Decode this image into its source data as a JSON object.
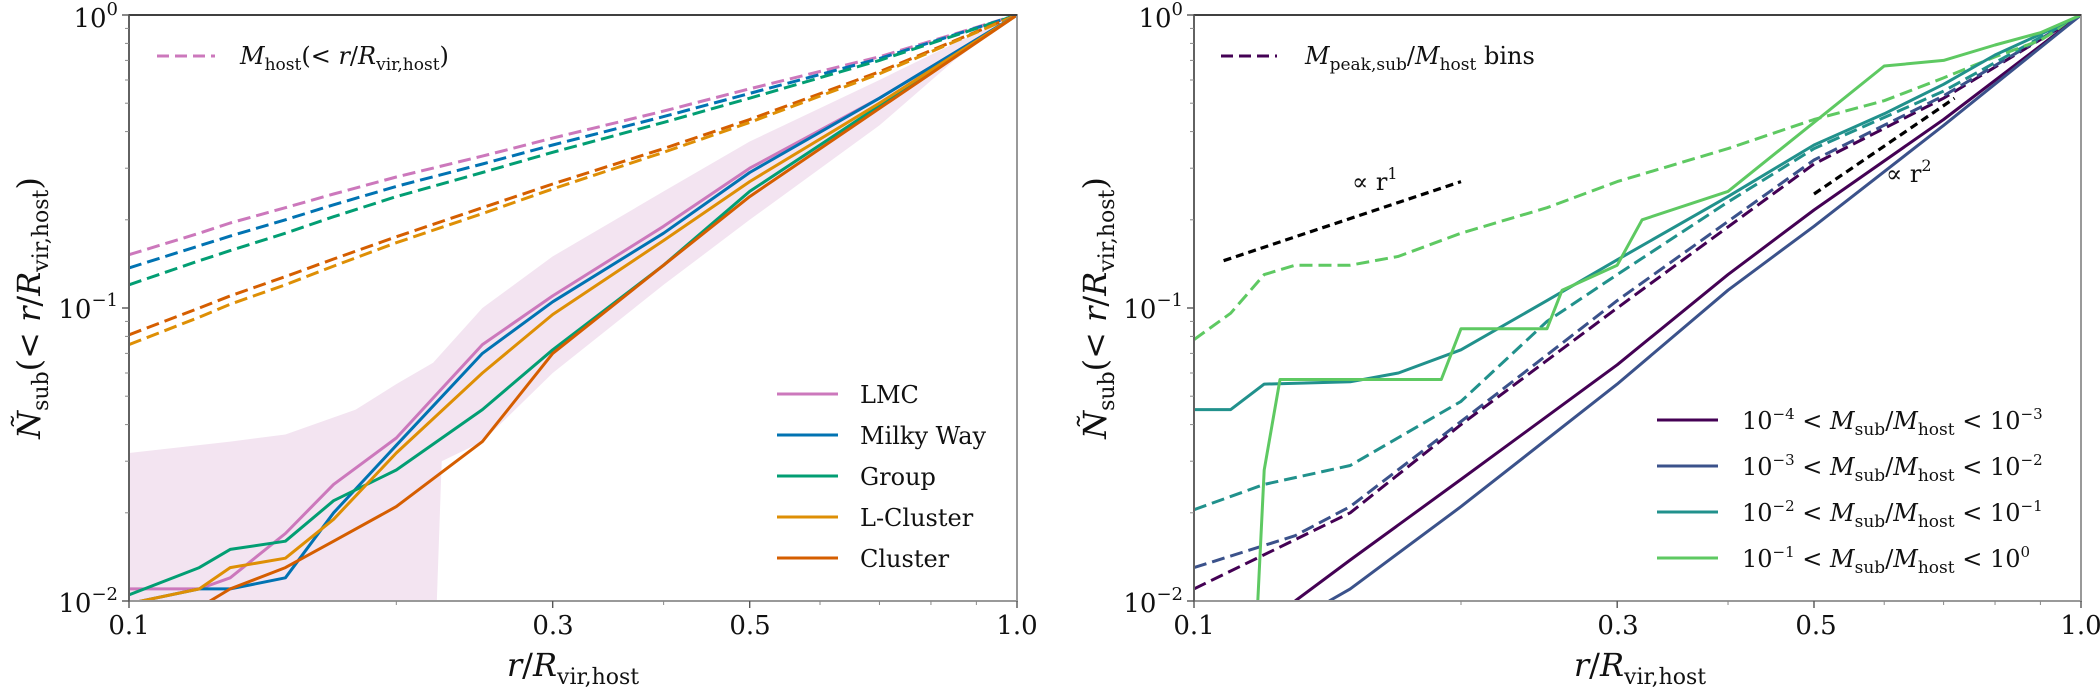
{
  "chart_data": [
    {
      "type": "line",
      "panel": "left",
      "xlabel": "r/R_vir,host",
      "ylabel": "Ñ_sub(< r/R_vir,host)",
      "xscale": "log",
      "yscale": "log",
      "xlim": [
        0.1,
        1.0
      ],
      "ylim": [
        0.01,
        1.0
      ],
      "xticks": [
        0.1,
        0.3,
        0.5,
        1.0
      ],
      "xtick_labels": [
        "0.1",
        "0.3",
        "0.5",
        "1.0"
      ],
      "yticks": [
        0.01,
        0.1,
        1.0
      ],
      "ytick_labels": [
        {
          "base": "10",
          "exp": "−2"
        },
        {
          "base": "10",
          "exp": "−1"
        },
        {
          "base": "10",
          "exp": "0"
        }
      ],
      "grid": false,
      "legend_top": {
        "placement": "top-left",
        "label": "M_host(< r/R_vir,host)",
        "style": "dashed",
        "color": "#cc78bc"
      },
      "legend": {
        "placement": "lower-right",
        "entries": [
          "LMC",
          "Milky Way",
          "Group",
          "L-Cluster",
          "Cluster"
        ]
      },
      "band": {
        "name": "LMC scatter",
        "color": "#f3e4f1",
        "x": [
          0.1,
          0.13,
          0.15,
          0.18,
          0.2,
          0.22,
          0.25,
          0.3,
          0.4,
          0.5,
          0.7,
          0.85,
          1.0
        ],
        "upper": [
          0.032,
          0.035,
          0.037,
          0.045,
          0.055,
          0.065,
          0.1,
          0.15,
          0.25,
          0.37,
          0.6,
          0.8,
          1.0
        ],
        "lower_x": [
          0.1,
          0.222,
          0.225,
          0.25,
          0.3,
          0.4,
          0.5,
          0.7,
          0.85,
          1.0
        ],
        "lower": [
          0.0095,
          0.0095,
          0.03,
          0.035,
          0.06,
          0.12,
          0.2,
          0.42,
          0.7,
          1.0
        ]
      },
      "x": [
        0.1,
        0.12,
        0.13,
        0.15,
        0.17,
        0.2,
        0.25,
        0.3,
        0.4,
        0.5,
        0.7,
        1.0
      ],
      "series": [
        {
          "name": "LMC",
          "color": "#cc78bc",
          "style": "solid",
          "values": [
            0.011,
            0.011,
            0.012,
            0.017,
            0.025,
            0.036,
            0.075,
            0.11,
            0.19,
            0.3,
            0.52,
            1.0
          ]
        },
        {
          "name": "Milky Way",
          "color": "#0173b2",
          "style": "solid",
          "values": [
            0.0098,
            0.011,
            0.011,
            0.012,
            0.02,
            0.034,
            0.07,
            0.105,
            0.18,
            0.29,
            0.52,
            1.0
          ]
        },
        {
          "name": "Group",
          "color": "#029e73",
          "style": "solid",
          "values": [
            0.0105,
            0.013,
            0.015,
            0.016,
            0.022,
            0.028,
            0.045,
            0.072,
            0.14,
            0.25,
            0.49,
            1.0
          ]
        },
        {
          "name": "L-Cluster",
          "color": "#de8f05",
          "style": "solid",
          "values": [
            0.0098,
            0.011,
            0.013,
            0.014,
            0.019,
            0.032,
            0.06,
            0.095,
            0.17,
            0.27,
            0.5,
            1.0
          ]
        },
        {
          "name": "Cluster",
          "color": "#d55e00",
          "style": "solid",
          "values": [
            0.0085,
            0.0095,
            0.011,
            0.013,
            0.016,
            0.021,
            0.035,
            0.07,
            0.14,
            0.24,
            0.48,
            1.0
          ]
        },
        {
          "name": "LMC host mass",
          "color": "#cc78bc",
          "style": "dashed",
          "values": [
            0.152,
            0.18,
            0.195,
            0.22,
            0.245,
            0.28,
            0.33,
            0.38,
            0.47,
            0.56,
            0.72,
            1.0
          ]
        },
        {
          "name": "Milky Way host mass",
          "color": "#0173b2",
          "style": "dashed",
          "values": [
            0.137,
            0.163,
            0.176,
            0.2,
            0.225,
            0.26,
            0.31,
            0.36,
            0.45,
            0.54,
            0.71,
            1.0
          ]
        },
        {
          "name": "Group host mass",
          "color": "#029e73",
          "style": "dashed",
          "values": [
            0.12,
            0.145,
            0.157,
            0.18,
            0.205,
            0.24,
            0.29,
            0.34,
            0.43,
            0.52,
            0.7,
            1.0
          ]
        },
        {
          "name": "Cluster host mass",
          "color": "#d55e00",
          "style": "dashed",
          "values": [
            0.081,
            0.1,
            0.11,
            0.128,
            0.147,
            0.175,
            0.22,
            0.265,
            0.35,
            0.44,
            0.64,
            1.0
          ]
        },
        {
          "name": "L-Cluster host mass",
          "color": "#de8f05",
          "style": "dashed",
          "values": [
            0.075,
            0.093,
            0.103,
            0.12,
            0.139,
            0.167,
            0.21,
            0.255,
            0.34,
            0.43,
            0.63,
            1.0
          ]
        }
      ]
    },
    {
      "type": "line",
      "panel": "right",
      "xlabel": "r/R_vir,host",
      "ylabel": "Ñ_sub(< r/R_vir,host)",
      "xscale": "log",
      "yscale": "log",
      "xlim": [
        0.1,
        1.0
      ],
      "ylim": [
        0.01,
        1.0
      ],
      "xticks": [
        0.1,
        0.3,
        0.5,
        1.0
      ],
      "xtick_labels": [
        "0.1",
        "0.3",
        "0.5",
        "1.0"
      ],
      "yticks": [
        0.01,
        0.1,
        1.0
      ],
      "ytick_labels": [
        {
          "base": "10",
          "exp": "−2"
        },
        {
          "base": "10",
          "exp": "−1"
        },
        {
          "base": "10",
          "exp": "0"
        }
      ],
      "grid": false,
      "legend_top": {
        "placement": "top-left",
        "label": "M_peak,sub/M_host bins",
        "style": "dashed",
        "color": "#440154"
      },
      "legend": {
        "placement": "lower-right",
        "entries": [
          {
            "lo": "−4",
            "hi": "−3",
            "label": "10^-4 < M_sub/M_host < 10^-3"
          },
          {
            "lo": "−3",
            "hi": "−2",
            "label": "10^-3 < M_sub/M_host < 10^-2"
          },
          {
            "lo": "−2",
            "hi": "−1",
            "label": "10^-2 < M_sub/M_host < 10^-1"
          },
          {
            "lo": "−1",
            "hi": "0",
            "label": "10^-1 < M_sub/M_host < 10^0"
          }
        ]
      },
      "annotations": [
        {
          "text": "∝ r",
          "exp": "1",
          "line": {
            "x": [
              0.108,
              0.2
            ],
            "y": [
              0.145,
              0.27
            ]
          }
        },
        {
          "text": "∝ r",
          "exp": "2",
          "line": {
            "x": [
              0.5,
              0.72
            ],
            "y": [
              0.245,
              0.52
            ]
          }
        }
      ],
      "series": [
        {
          "name": "10^-4 < M_sub/M_host < 10^-3",
          "color": "#440154",
          "style": "solid",
          "x": [
            0.13,
            0.15,
            0.2,
            0.3,
            0.4,
            0.5,
            0.7,
            1.0
          ],
          "values": [
            0.01,
            0.0138,
            0.026,
            0.064,
            0.13,
            0.216,
            0.44,
            1.0
          ]
        },
        {
          "name": "10^-3 < M_sub/M_host < 10^-2",
          "color": "#3b528b",
          "style": "solid",
          "x": [
            0.142,
            0.15,
            0.2,
            0.3,
            0.4,
            0.5,
            0.7,
            1.0
          ],
          "values": [
            0.01,
            0.011,
            0.021,
            0.055,
            0.115,
            0.19,
            0.42,
            1.0
          ]
        },
        {
          "name": "10^-2 < M_sub/M_host < 10^-1",
          "color": "#21918c",
          "style": "solid",
          "x": [
            0.1,
            0.11,
            0.12,
            0.15,
            0.17,
            0.2,
            0.25,
            0.3,
            0.4,
            0.5,
            0.6,
            0.7,
            0.8,
            0.9,
            1.0
          ],
          "values": [
            0.045,
            0.045,
            0.055,
            0.056,
            0.06,
            0.072,
            0.106,
            0.146,
            0.24,
            0.36,
            0.46,
            0.58,
            0.73,
            0.86,
            1.0
          ]
        },
        {
          "name": "10^-1 < M_sub/M_host < 10^0",
          "color": "#5ec962",
          "style": "solid",
          "x": [
            0.118,
            0.12,
            0.125,
            0.19,
            0.2,
            0.25,
            0.26,
            0.3,
            0.32,
            0.4,
            0.5,
            0.6,
            0.7,
            0.8,
            0.9,
            1.0
          ],
          "values": [
            0.01,
            0.028,
            0.057,
            0.057,
            0.085,
            0.085,
            0.115,
            0.14,
            0.2,
            0.25,
            0.43,
            0.67,
            0.7,
            0.79,
            0.87,
            1.0
          ]
        },
        {
          "name": "M_peak bin 10^-4–10^-3",
          "color": "#440154",
          "style": "dashed",
          "x": [
            0.1,
            0.15,
            0.2,
            0.3,
            0.5,
            0.7,
            1.0
          ],
          "values": [
            0.011,
            0.02,
            0.04,
            0.1,
            0.31,
            0.52,
            1.0
          ]
        },
        {
          "name": "M_peak bin 10^-3–10^-2",
          "color": "#3b528b",
          "style": "dashed",
          "x": [
            0.1,
            0.13,
            0.15,
            0.2,
            0.3,
            0.5,
            0.7,
            1.0
          ],
          "values": [
            0.013,
            0.0167,
            0.021,
            0.041,
            0.106,
            0.32,
            0.53,
            1.0
          ]
        },
        {
          "name": "M_peak bin 10^-2–10^-1",
          "color": "#21918c",
          "style": "dashed",
          "x": [
            0.1,
            0.12,
            0.15,
            0.2,
            0.25,
            0.3,
            0.4,
            0.5,
            0.7,
            1.0
          ],
          "values": [
            0.0205,
            0.025,
            0.029,
            0.048,
            0.09,
            0.13,
            0.23,
            0.35,
            0.55,
            1.0
          ]
        },
        {
          "name": "M_peak bin 10^-1–10^0",
          "color": "#5ec962",
          "style": "dashed",
          "x": [
            0.1,
            0.11,
            0.12,
            0.13,
            0.15,
            0.17,
            0.2,
            0.25,
            0.3,
            0.4,
            0.5,
            0.6,
            0.7,
            0.8,
            0.9,
            1.0
          ],
          "values": [
            0.078,
            0.096,
            0.13,
            0.14,
            0.14,
            0.15,
            0.18,
            0.22,
            0.27,
            0.35,
            0.44,
            0.51,
            0.61,
            0.72,
            0.82,
            1.0
          ]
        }
      ]
    }
  ]
}
